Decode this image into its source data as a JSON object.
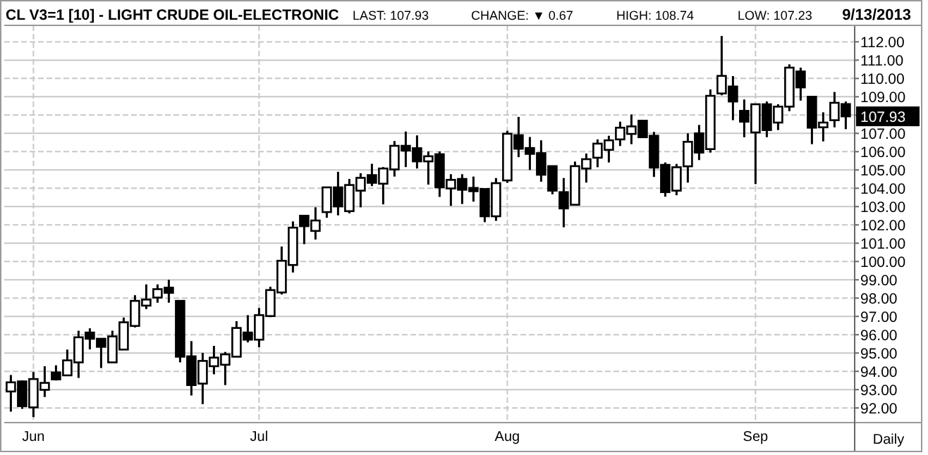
{
  "chart_data": {
    "type": "candlestick",
    "title": "CL V3=1 [10] - LIGHT CRUDE OIL-ELECTRONIC",
    "annotations": [
      "LAST: 107.93",
      "CHANGE: ▼ 0.67",
      "HIGH: 108.74",
      "LOW: 107.23",
      "9/13/2013",
      "Daily",
      "107.93"
    ],
    "categories": [
      null,
      null,
      "Jun",
      null,
      null,
      null,
      null,
      null,
      null,
      null,
      null,
      null,
      null,
      null,
      null,
      null,
      null,
      null,
      null,
      null,
      null,
      null,
      "Jul",
      null,
      null,
      null,
      null,
      null,
      null,
      null,
      null,
      null,
      null,
      null,
      null,
      null,
      null,
      null,
      null,
      null,
      null,
      null,
      null,
      null,
      "Aug",
      null,
      null,
      null,
      null,
      null,
      null,
      null,
      null,
      null,
      null,
      null,
      null,
      null,
      null,
      null,
      null,
      null,
      null,
      null,
      null,
      null,
      "Sep",
      null,
      null,
      null,
      null,
      null,
      null,
      null,
      null
    ],
    "ohlc": [
      [
        92.9,
        93.8,
        91.8,
        93.4
      ],
      [
        93.45,
        93.5,
        91.95,
        92.1
      ],
      [
        92.03,
        93.96,
        91.5,
        93.58
      ],
      [
        92.99,
        94.28,
        92.6,
        93.37
      ],
      [
        93.94,
        94.33,
        93.5,
        93.56
      ],
      [
        93.78,
        95.19,
        93.78,
        94.6
      ],
      [
        94.49,
        96.22,
        93.64,
        95.86
      ],
      [
        96.12,
        96.35,
        95.2,
        95.78
      ],
      [
        95.78,
        95.78,
        94.18,
        95.34
      ],
      [
        94.49,
        96.22,
        94.49,
        95.91
      ],
      [
        95.19,
        96.94,
        95.19,
        96.68
      ],
      [
        96.48,
        98.16,
        96.4,
        97.85
      ],
      [
        97.59,
        98.75,
        97.4,
        97.92
      ],
      [
        98.03,
        98.75,
        97.75,
        98.49
      ],
      [
        98.57,
        99.0,
        97.75,
        98.29
      ],
      [
        97.85,
        97.85,
        94.49,
        94.8
      ],
      [
        94.82,
        95.65,
        92.68,
        93.25
      ],
      [
        93.33,
        95.01,
        92.21,
        94.57
      ],
      [
        94.28,
        95.39,
        93.84,
        94.75
      ],
      [
        94.36,
        95.06,
        93.25,
        94.93
      ],
      [
        94.8,
        96.74,
        94.8,
        96.37
      ],
      [
        96.12,
        97.07,
        95.58,
        95.73
      ],
      [
        95.73,
        97.46,
        95.32,
        97.07
      ],
      [
        97.02,
        98.62,
        96.96,
        98.44
      ],
      [
        98.31,
        100.82,
        98.2,
        100.04
      ],
      [
        99.81,
        102.19,
        99.4,
        101.85
      ],
      [
        102.5,
        102.5,
        100.95,
        101.93
      ],
      [
        101.67,
        102.96,
        101.2,
        102.24
      ],
      [
        102.7,
        104.05,
        102.39,
        104.05
      ],
      [
        104.05,
        104.9,
        102.52,
        103.01
      ],
      [
        102.75,
        104.51,
        102.63,
        104.18
      ],
      [
        103.87,
        104.82,
        102.96,
        104.57
      ],
      [
        104.72,
        105.34,
        104.12,
        104.3
      ],
      [
        104.25,
        105.16,
        103.12,
        105.08
      ],
      [
        105.03,
        106.58,
        104.64,
        106.32
      ],
      [
        106.32,
        107.1,
        105.16,
        106.06
      ],
      [
        106.19,
        106.89,
        105.08,
        105.47
      ],
      [
        105.47,
        106.01,
        104.2,
        105.75
      ],
      [
        105.86,
        106.01,
        103.53,
        104.05
      ],
      [
        103.99,
        104.77,
        103.04,
        104.46
      ],
      [
        104.51,
        104.77,
        103.14,
        103.92
      ],
      [
        104.02,
        104.64,
        103.27,
        103.84
      ],
      [
        103.96,
        103.96,
        102.15,
        102.47
      ],
      [
        102.47,
        104.56,
        102.22,
        104.28
      ],
      [
        104.43,
        107.14,
        104.3,
        106.98
      ],
      [
        106.9,
        107.9,
        105.7,
        106.16
      ],
      [
        106.2,
        106.8,
        105.0,
        105.88
      ],
      [
        105.92,
        106.62,
        104.36,
        104.74
      ],
      [
        105.21,
        105.21,
        103.67,
        103.87
      ],
      [
        103.79,
        104.56,
        101.87,
        102.9
      ],
      [
        103.1,
        105.46,
        103.1,
        105.21
      ],
      [
        105.08,
        105.9,
        104.31,
        105.59
      ],
      [
        105.67,
        106.67,
        105.15,
        106.44
      ],
      [
        106.1,
        106.87,
        105.41,
        106.62
      ],
      [
        106.67,
        107.64,
        106.31,
        107.31
      ],
      [
        106.97,
        108.03,
        106.41,
        107.38
      ],
      [
        107.69,
        107.69,
        106.79,
        106.79
      ],
      [
        106.87,
        107.08,
        104.62,
        105.13
      ],
      [
        105.28,
        105.41,
        103.54,
        103.79
      ],
      [
        103.87,
        105.33,
        103.62,
        105.15
      ],
      [
        105.2,
        107.0,
        104.31,
        106.54
      ],
      [
        107.0,
        107.46,
        105.54,
        105.95
      ],
      [
        106.14,
        109.4,
        105.95,
        109.05
      ],
      [
        109.18,
        112.32,
        109.08,
        110.14
      ],
      [
        109.56,
        110.13,
        107.72,
        108.74
      ],
      [
        108.23,
        108.85,
        106.79,
        107.64
      ],
      [
        107.05,
        108.59,
        104.23,
        108.59
      ],
      [
        108.59,
        108.74,
        106.79,
        107.18
      ],
      [
        107.59,
        108.59,
        107.18,
        108.46
      ],
      [
        108.46,
        110.77,
        108.21,
        110.59
      ],
      [
        110.38,
        110.59,
        108.79,
        109.51
      ],
      [
        109.0,
        109.0,
        106.41,
        107.31
      ],
      [
        107.33,
        108.15,
        106.56,
        107.59
      ],
      [
        107.72,
        109.26,
        107.33,
        108.67
      ],
      [
        108.6,
        108.74,
        107.23,
        107.93
      ]
    ],
    "ylim": [
      91.2,
      112.9
    ],
    "yticks": [
      {
        "value": 92,
        "label": "92.00"
      },
      {
        "value": 93,
        "label": "93.00"
      },
      {
        "value": 94,
        "label": "94.00"
      },
      {
        "value": 95,
        "label": "95.00"
      },
      {
        "value": 96,
        "label": "96.00"
      },
      {
        "value": 97,
        "label": "97.00"
      },
      {
        "value": 98,
        "label": "98.00"
      },
      {
        "value": 99,
        "label": "99.00"
      },
      {
        "value": 100,
        "label": "100.00"
      },
      {
        "value": 101,
        "label": "101.00"
      },
      {
        "value": 102,
        "label": "102.00"
      },
      {
        "value": 103,
        "label": "103.00"
      },
      {
        "value": 104,
        "label": "104.00"
      },
      {
        "value": 105,
        "label": "105.00"
      },
      {
        "value": 106,
        "label": "106.00"
      },
      {
        "value": 107,
        "label": "107.00"
      },
      {
        "value": 108,
        "label": null
      },
      {
        "value": 109,
        "label": "109.00"
      },
      {
        "value": 110,
        "label": "110.00"
      },
      {
        "value": 111,
        "label": "111.00"
      },
      {
        "value": 112,
        "label": "112.00"
      }
    ],
    "grid": true
  }
}
